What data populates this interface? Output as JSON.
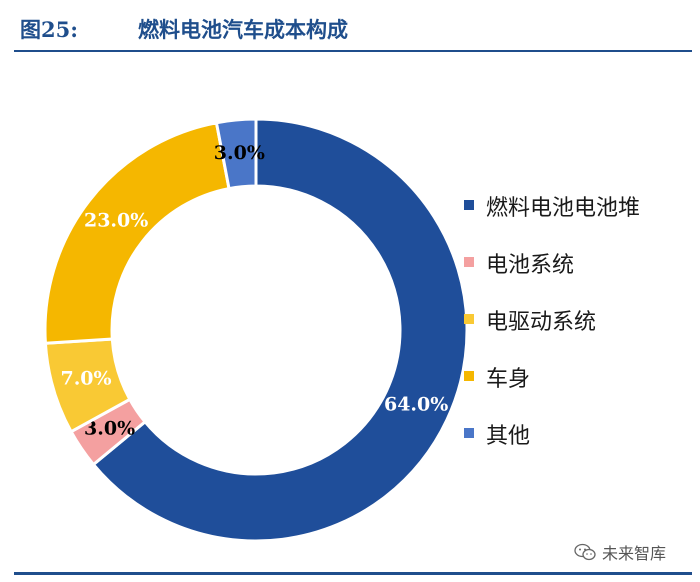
{
  "header": {
    "figure_number": "图25:",
    "title": "燃料电池汽车成本构成"
  },
  "chart_data": {
    "type": "pie",
    "subtype": "donut",
    "title": "燃料电池汽车成本构成",
    "unit": "%",
    "legend_position": "right",
    "slices": [
      {
        "label": "燃料电池电池堆",
        "value": 64.0,
        "display": "64.0%",
        "color": "#1f4e9a",
        "text_color": "#ffffff"
      },
      {
        "label": "电池系统",
        "value": 3.0,
        "display": "3.0%",
        "color": "#f4a0a0",
        "text_color": "#000000"
      },
      {
        "label": "电驱动系统",
        "value": 7.0,
        "display": "7.0%",
        "color": "#f9c934",
        "text_color": "#ffffff"
      },
      {
        "label": "车身",
        "value": 23.0,
        "display": "23.0%",
        "color": "#f5b700",
        "text_color": "#ffffff"
      },
      {
        "label": "其他",
        "value": 3.0,
        "display": "3.0%",
        "color": "#4a76c8",
        "text_color": "#000000"
      }
    ]
  },
  "watermark": {
    "icon": "wechat-icon",
    "text": "未来智库"
  },
  "colors": {
    "brand": "#1f4e8c"
  }
}
